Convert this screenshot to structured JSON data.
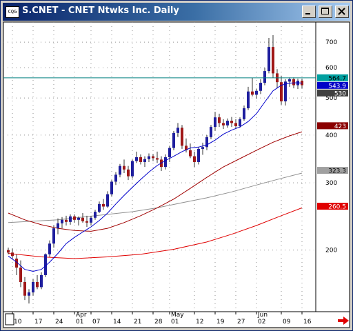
{
  "window": {
    "title": "S.CNET - CNET Ntwks Inc. Daily",
    "icon": "app-icon"
  },
  "title_buttons": [
    "minimize-icon",
    "maximize-icon",
    "close-icon"
  ],
  "chart_data": {
    "type": "candlestick",
    "title": "S.CNET - CNET Ntwks Inc. Daily",
    "y_axis_scale": "log",
    "y_range": [
      138,
      790
    ],
    "y_ticks": [
      200,
      300,
      400,
      500,
      600,
      700
    ],
    "x_tick_labels": [
      "10",
      "17",
      "24",
      "01",
      "07",
      "14",
      "21",
      "28",
      "01",
      "12",
      "19",
      "27",
      "02",
      "09",
      "16"
    ],
    "x_tick_index": [
      1,
      6,
      11,
      16,
      20,
      25,
      30,
      35,
      39,
      45,
      50,
      55,
      60,
      66,
      71
    ],
    "month_labels": [
      {
        "text": "Apr",
        "index": 16
      },
      {
        "text": "May",
        "index": 39
      },
      {
        "text": "Jun",
        "index": 60
      }
    ],
    "grid": true,
    "candles": [
      [
        200,
        203,
        195,
        197
      ],
      [
        197,
        202,
        190,
        193
      ],
      [
        190,
        195,
        172,
        180
      ],
      [
        180,
        188,
        160,
        165
      ],
      [
        165,
        170,
        148,
        152
      ],
      [
        152,
        158,
        145,
        155
      ],
      [
        155,
        168,
        152,
        165
      ],
      [
        165,
        172,
        158,
        160
      ],
      [
        160,
        175,
        158,
        172
      ],
      [
        172,
        196,
        170,
        195
      ],
      [
        195,
        212,
        192,
        208
      ],
      [
        208,
        232,
        203,
        228
      ],
      [
        228,
        242,
        220,
        235
      ],
      [
        235,
        244,
        228,
        240
      ],
      [
        240,
        246,
        232,
        237
      ],
      [
        237,
        248,
        233,
        245
      ],
      [
        245,
        248,
        236,
        240
      ],
      [
        240,
        245,
        232,
        243
      ],
      [
        243,
        250,
        236,
        238
      ],
      [
        238,
        246,
        230,
        236
      ],
      [
        236,
        246,
        232,
        243
      ],
      [
        243,
        255,
        240,
        252
      ],
      [
        252,
        268,
        250,
        264
      ],
      [
        264,
        272,
        255,
        260
      ],
      [
        260,
        285,
        258,
        280
      ],
      [
        280,
        305,
        276,
        302
      ],
      [
        302,
        320,
        296,
        315
      ],
      [
        315,
        336,
        310,
        332
      ],
      [
        332,
        345,
        318,
        325
      ],
      [
        325,
        332,
        305,
        312
      ],
      [
        312,
        345,
        308,
        342
      ],
      [
        342,
        362,
        338,
        350
      ],
      [
        350,
        356,
        335,
        340
      ],
      [
        340,
        352,
        330,
        346
      ],
      [
        346,
        358,
        340,
        352
      ],
      [
        352,
        357,
        342,
        348
      ],
      [
        348,
        362,
        338,
        345
      ],
      [
        345,
        352,
        322,
        330
      ],
      [
        330,
        356,
        325,
        350
      ],
      [
        350,
        375,
        340,
        370
      ],
      [
        370,
        410,
        365,
        405
      ],
      [
        405,
        430,
        395,
        418
      ],
      [
        418,
        425,
        368,
        375
      ],
      [
        375,
        392,
        360,
        365
      ],
      [
        365,
        380,
        348,
        352
      ],
      [
        352,
        362,
        330,
        340
      ],
      [
        340,
        372,
        335,
        368
      ],
      [
        368,
        382,
        355,
        372
      ],
      [
        372,
        400,
        365,
        395
      ],
      [
        395,
        425,
        390,
        420
      ],
      [
        420,
        460,
        410,
        445
      ],
      [
        445,
        455,
        420,
        430
      ],
      [
        430,
        440,
        415,
        424
      ],
      [
        424,
        442,
        418,
        436
      ],
      [
        436,
        446,
        420,
        430
      ],
      [
        430,
        440,
        415,
        422
      ],
      [
        422,
        445,
        418,
        440
      ],
      [
        440,
        478,
        436,
        470
      ],
      [
        470,
        535,
        465,
        520
      ],
      [
        520,
        565,
        505,
        510
      ],
      [
        510,
        528,
        498,
        522
      ],
      [
        522,
        560,
        512,
        548
      ],
      [
        548,
        600,
        540,
        588
      ],
      [
        588,
        718,
        580,
        680
      ],
      [
        680,
        730,
        565,
        580
      ],
      [
        580,
        595,
        530,
        550
      ],
      [
        550,
        572,
        480,
        490
      ],
      [
        490,
        560,
        478,
        552
      ],
      [
        552,
        566,
        535,
        560
      ],
      [
        560,
        566,
        530,
        540
      ],
      [
        540,
        562,
        528,
        555
      ],
      [
        555,
        562,
        530,
        540
      ]
    ],
    "ma_blue": [
      [
        0,
        193
      ],
      [
        2,
        186
      ],
      [
        4,
        178
      ],
      [
        6,
        176
      ],
      [
        8,
        178
      ],
      [
        10,
        186
      ],
      [
        12,
        196
      ],
      [
        14,
        208
      ],
      [
        16,
        216
      ],
      [
        18,
        223
      ],
      [
        20,
        230
      ],
      [
        22,
        239
      ],
      [
        24,
        250
      ],
      [
        26,
        264
      ],
      [
        28,
        278
      ],
      [
        30,
        292
      ],
      [
        32,
        306
      ],
      [
        34,
        320
      ],
      [
        36,
        333
      ],
      [
        38,
        343
      ],
      [
        40,
        352
      ],
      [
        42,
        362
      ],
      [
        44,
        370
      ],
      [
        46,
        372
      ],
      [
        48,
        377
      ],
      [
        50,
        388
      ],
      [
        52,
        402
      ],
      [
        54,
        412
      ],
      [
        56,
        420
      ],
      [
        58,
        434
      ],
      [
        60,
        455
      ],
      [
        62,
        488
      ],
      [
        64,
        522
      ],
      [
        66,
        540
      ],
      [
        68,
        547
      ],
      [
        70,
        548
      ],
      [
        71,
        547
      ]
    ],
    "ma_darkred": [
      [
        0,
        250
      ],
      [
        4,
        240
      ],
      [
        8,
        233
      ],
      [
        12,
        228
      ],
      [
        16,
        225
      ],
      [
        20,
        224
      ],
      [
        24,
        228
      ],
      [
        28,
        236
      ],
      [
        32,
        246
      ],
      [
        36,
        258
      ],
      [
        40,
        272
      ],
      [
        44,
        290
      ],
      [
        48,
        310
      ],
      [
        52,
        330
      ],
      [
        56,
        347
      ],
      [
        60,
        365
      ],
      [
        64,
        383
      ],
      [
        68,
        398
      ],
      [
        71,
        408
      ]
    ],
    "ma_gray": [
      [
        0,
        236
      ],
      [
        6,
        238
      ],
      [
        12,
        240
      ],
      [
        18,
        244
      ],
      [
        24,
        248
      ],
      [
        30,
        252
      ],
      [
        36,
        258
      ],
      [
        42,
        266
      ],
      [
        48,
        274
      ],
      [
        54,
        284
      ],
      [
        60,
        296
      ],
      [
        66,
        308
      ],
      [
        71,
        318
      ]
    ],
    "ma_red": [
      [
        0,
        196
      ],
      [
        8,
        192
      ],
      [
        16,
        190
      ],
      [
        24,
        192
      ],
      [
        32,
        195
      ],
      [
        40,
        201
      ],
      [
        48,
        210
      ],
      [
        54,
        220
      ],
      [
        60,
        232
      ],
      [
        66,
        246
      ],
      [
        71,
        258
      ]
    ],
    "horizontal_line": {
      "value": 564.7,
      "color": "#008080"
    },
    "price_tags": [
      {
        "value": 564.7,
        "label": "564.7",
        "bg": "#00a0a0",
        "fg": "#000000"
      },
      {
        "value": 543.9,
        "label": "543.9",
        "bg": "#0000c8",
        "fg": "#ffffff"
      },
      {
        "value": 530,
        "label": "530",
        "bg": "#404040",
        "fg": "#ffffff"
      },
      {
        "value": 423,
        "label": "423",
        "bg": "#8b0000",
        "fg": "#ffffff"
      },
      {
        "value": 323.3,
        "label": "323.3",
        "bg": "#a0a0a0",
        "fg": "#000000"
      },
      {
        "value": 260.5,
        "label": "260.5",
        "bg": "#e00000",
        "fg": "#ffffff"
      }
    ],
    "colors": {
      "up": "#1e1e9e",
      "down": "#a01818",
      "wick": "#303030",
      "ma_blue": "#0000cc",
      "ma_darkred": "#a00000",
      "ma_gray": "#909090",
      "ma_red": "#e00000",
      "grid": "#909090"
    }
  },
  "footer": {
    "arrow_icon": "right-arrow-icon",
    "color": "#e00000"
  }
}
